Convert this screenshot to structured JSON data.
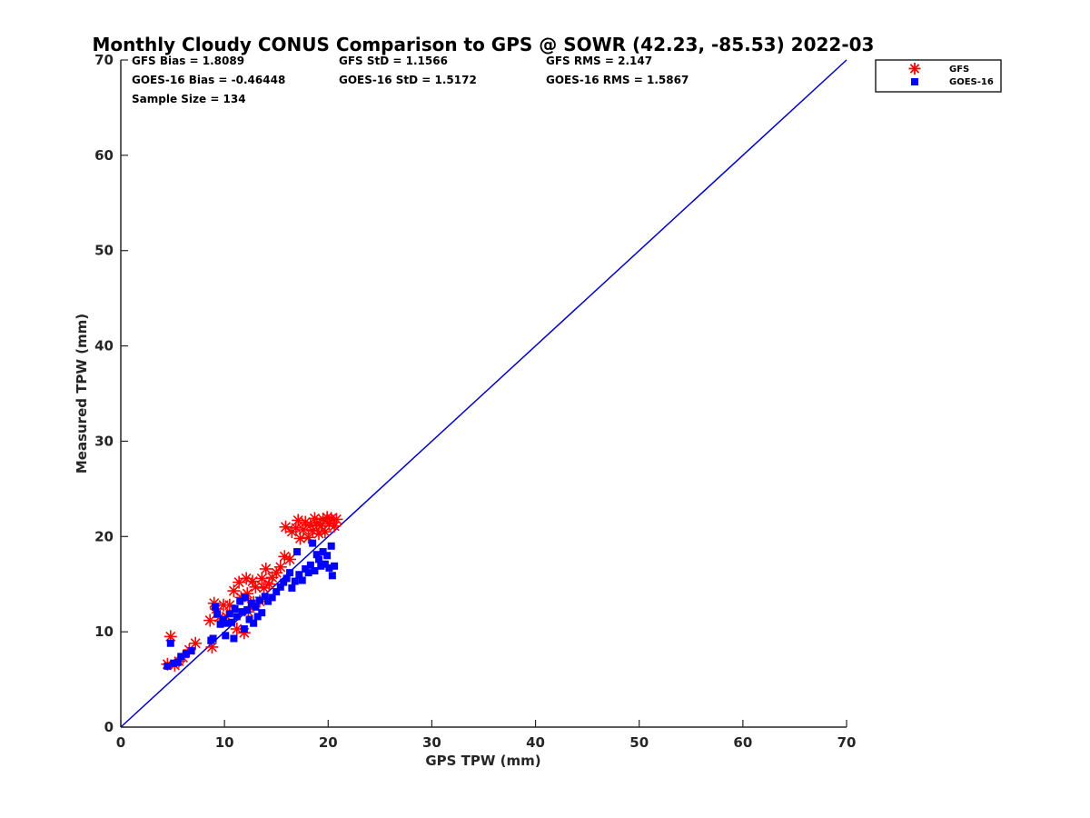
{
  "chart_data": {
    "type": "scatter",
    "title": "Monthly Cloudy CONUS Comparison to GPS @ SOWR (42.23, -85.53) 2022-03",
    "xlabel": "GPS TPW (mm)",
    "ylabel": "Measured TPW (mm)",
    "xlim": [
      0,
      70
    ],
    "ylim": [
      0,
      70
    ],
    "xticks": [
      "0",
      "10",
      "20",
      "30",
      "40",
      "50",
      "60",
      "70"
    ],
    "yticks": [
      "0",
      "10",
      "20",
      "30",
      "40",
      "50",
      "60",
      "70"
    ],
    "grid": false,
    "legend_position": "outside-top-right",
    "stats": {
      "gfs_bias": "GFS Bias = 1.8089",
      "goes_bias": "GOES-16 Bias = -0.46448",
      "sample_size": "Sample Size = 134",
      "gfs_std": "GFS StD = 1.1566",
      "goes_std": "GOES-16 StD = 1.5172",
      "gfs_rms": "GFS RMS = 2.147",
      "goes_rms": "GOES-16 RMS = 1.5867"
    },
    "reference_line": {
      "from": [
        0,
        0
      ],
      "to": [
        70,
        70
      ],
      "color": "#0000cc"
    },
    "series": [
      {
        "name": "GFS",
        "marker": "asterisk",
        "color": "#ff0000",
        "points": [
          [
            4.5,
            6.6
          ],
          [
            4.8,
            9.5
          ],
          [
            5.2,
            6.5
          ],
          [
            5.6,
            6.9
          ],
          [
            6.0,
            7.3
          ],
          [
            6.6,
            8.1
          ],
          [
            7.2,
            8.8
          ],
          [
            8.6,
            11.2
          ],
          [
            8.8,
            8.4
          ],
          [
            9.0,
            13.0
          ],
          [
            9.2,
            12.4
          ],
          [
            9.5,
            11.5
          ],
          [
            9.9,
            12.8
          ],
          [
            10.2,
            11.6
          ],
          [
            10.5,
            12.8
          ],
          [
            10.9,
            14.3
          ],
          [
            11.2,
            10.3
          ],
          [
            11.4,
            15.2
          ],
          [
            11.6,
            13.6
          ],
          [
            11.9,
            9.9
          ],
          [
            12.1,
            15.6
          ],
          [
            12.2,
            14.0
          ],
          [
            12.3,
            12.1
          ],
          [
            12.7,
            15.3
          ],
          [
            12.8,
            13.1
          ],
          [
            13.0,
            14.7
          ],
          [
            13.4,
            13.2
          ],
          [
            13.6,
            15.6
          ],
          [
            13.8,
            14.6
          ],
          [
            14.0,
            16.6
          ],
          [
            14.3,
            15.0
          ],
          [
            14.6,
            15.7
          ],
          [
            15.0,
            16.2
          ],
          [
            15.4,
            16.8
          ],
          [
            15.8,
            17.9
          ],
          [
            15.9,
            21.0
          ],
          [
            16.3,
            17.6
          ],
          [
            16.5,
            20.5
          ],
          [
            16.9,
            20.9
          ],
          [
            17.1,
            21.7
          ],
          [
            17.3,
            19.8
          ],
          [
            17.6,
            20.7
          ],
          [
            17.8,
            21.5
          ],
          [
            18.1,
            19.9
          ],
          [
            18.3,
            21.2
          ],
          [
            18.5,
            20.6
          ],
          [
            18.7,
            21.9
          ],
          [
            18.9,
            21.4
          ],
          [
            19.1,
            20.3
          ],
          [
            19.3,
            21.1
          ],
          [
            19.5,
            21.8
          ],
          [
            19.7,
            20.5
          ],
          [
            19.9,
            22.0
          ],
          [
            20.1,
            21.3
          ],
          [
            20.3,
            21.9
          ],
          [
            20.6,
            21.1
          ],
          [
            20.8,
            21.8
          ]
        ]
      },
      {
        "name": "GOES-16",
        "marker": "square",
        "color": "#0000ff",
        "points": [
          [
            4.5,
            6.4
          ],
          [
            4.8,
            8.8
          ],
          [
            5.1,
            6.7
          ],
          [
            5.5,
            6.8
          ],
          [
            5.8,
            7.4
          ],
          [
            6.3,
            7.7
          ],
          [
            6.8,
            8.0
          ],
          [
            8.7,
            9.1
          ],
          [
            8.9,
            9.3
          ],
          [
            9.1,
            12.6
          ],
          [
            9.3,
            11.9
          ],
          [
            9.6,
            10.8
          ],
          [
            9.9,
            11.3
          ],
          [
            10.1,
            9.6
          ],
          [
            10.3,
            10.9
          ],
          [
            10.5,
            11.9
          ],
          [
            10.7,
            11.0
          ],
          [
            10.9,
            9.3
          ],
          [
            11.0,
            12.4
          ],
          [
            11.2,
            11.6
          ],
          [
            11.5,
            13.2
          ],
          [
            11.7,
            12.1
          ],
          [
            11.9,
            10.3
          ],
          [
            12.0,
            13.6
          ],
          [
            12.2,
            12.3
          ],
          [
            12.4,
            11.3
          ],
          [
            12.6,
            13.0
          ],
          [
            12.8,
            10.9
          ],
          [
            13.0,
            12.6
          ],
          [
            13.2,
            11.6
          ],
          [
            13.4,
            13.3
          ],
          [
            13.6,
            12.0
          ],
          [
            13.9,
            13.7
          ],
          [
            14.2,
            13.2
          ],
          [
            14.6,
            13.6
          ],
          [
            15.0,
            14.2
          ],
          [
            15.4,
            14.7
          ],
          [
            15.7,
            15.2
          ],
          [
            16.0,
            15.6
          ],
          [
            16.3,
            16.2
          ],
          [
            16.5,
            14.6
          ],
          [
            16.8,
            15.3
          ],
          [
            17.0,
            18.4
          ],
          [
            17.2,
            16.0
          ],
          [
            17.5,
            15.4
          ],
          [
            17.8,
            16.6
          ],
          [
            18.1,
            16.2
          ],
          [
            18.3,
            17.0
          ],
          [
            18.5,
            19.3
          ],
          [
            18.7,
            16.4
          ],
          [
            18.9,
            18.1
          ],
          [
            19.1,
            17.6
          ],
          [
            19.3,
            16.9
          ],
          [
            19.5,
            18.4
          ],
          [
            19.7,
            17.1
          ],
          [
            19.9,
            18.0
          ],
          [
            20.1,
            16.7
          ],
          [
            20.3,
            19.0
          ],
          [
            20.4,
            15.9
          ],
          [
            20.6,
            16.9
          ]
        ]
      }
    ]
  }
}
